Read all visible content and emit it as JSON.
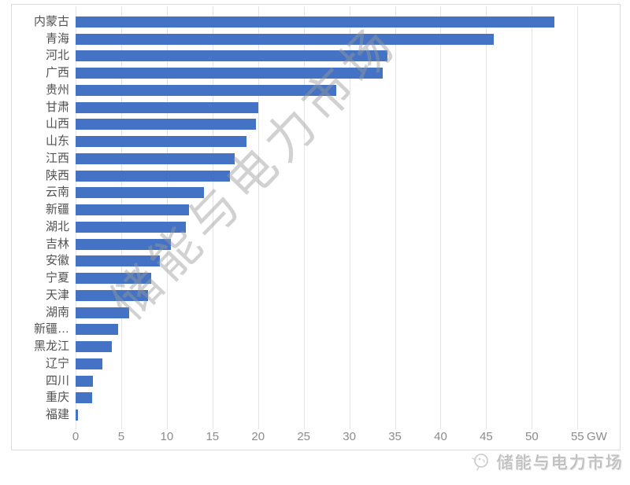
{
  "chart_data": {
    "type": "bar",
    "orientation": "horizontal",
    "title": "",
    "xlabel": "GW",
    "ylabel": "",
    "unit": "GW",
    "xlim": [
      0,
      55
    ],
    "xticks": [
      0,
      5,
      10,
      15,
      20,
      25,
      30,
      35,
      40,
      45,
      50,
      55
    ],
    "grid": true,
    "bar_color": "#4472c4",
    "categories": [
      "内蒙古",
      "青海",
      "河北",
      "广西",
      "贵州",
      "甘肃",
      "山西",
      "山东",
      "江西",
      "陕西",
      "云南",
      "新疆",
      "湖北",
      "吉林",
      "安徽",
      "宁夏",
      "天津",
      "湖南",
      "新疆…",
      "黑龙江",
      "辽宁",
      "四川",
      "重庆",
      "福建"
    ],
    "values": [
      52.5,
      45.8,
      34.2,
      33.7,
      28.6,
      20.0,
      19.8,
      18.7,
      17.4,
      16.9,
      14.1,
      12.4,
      12.1,
      10.4,
      9.2,
      8.3,
      7.9,
      5.9,
      4.7,
      4.0,
      2.9,
      1.9,
      1.8,
      0.3
    ]
  },
  "watermark": {
    "text": "储能与电力市场"
  },
  "footer": {
    "logo_text": "储能与电力市场",
    "logo_icon": "lightbulb-icon"
  },
  "colors": {
    "bar": "#4472c4",
    "gridline": "#e4e4e4",
    "category_label": "#525252",
    "tick_label": "#8b8b8b",
    "watermark": "#9a9a9a",
    "brand_text": "#c3c3c3",
    "frame_border": "#dcdcdc"
  }
}
